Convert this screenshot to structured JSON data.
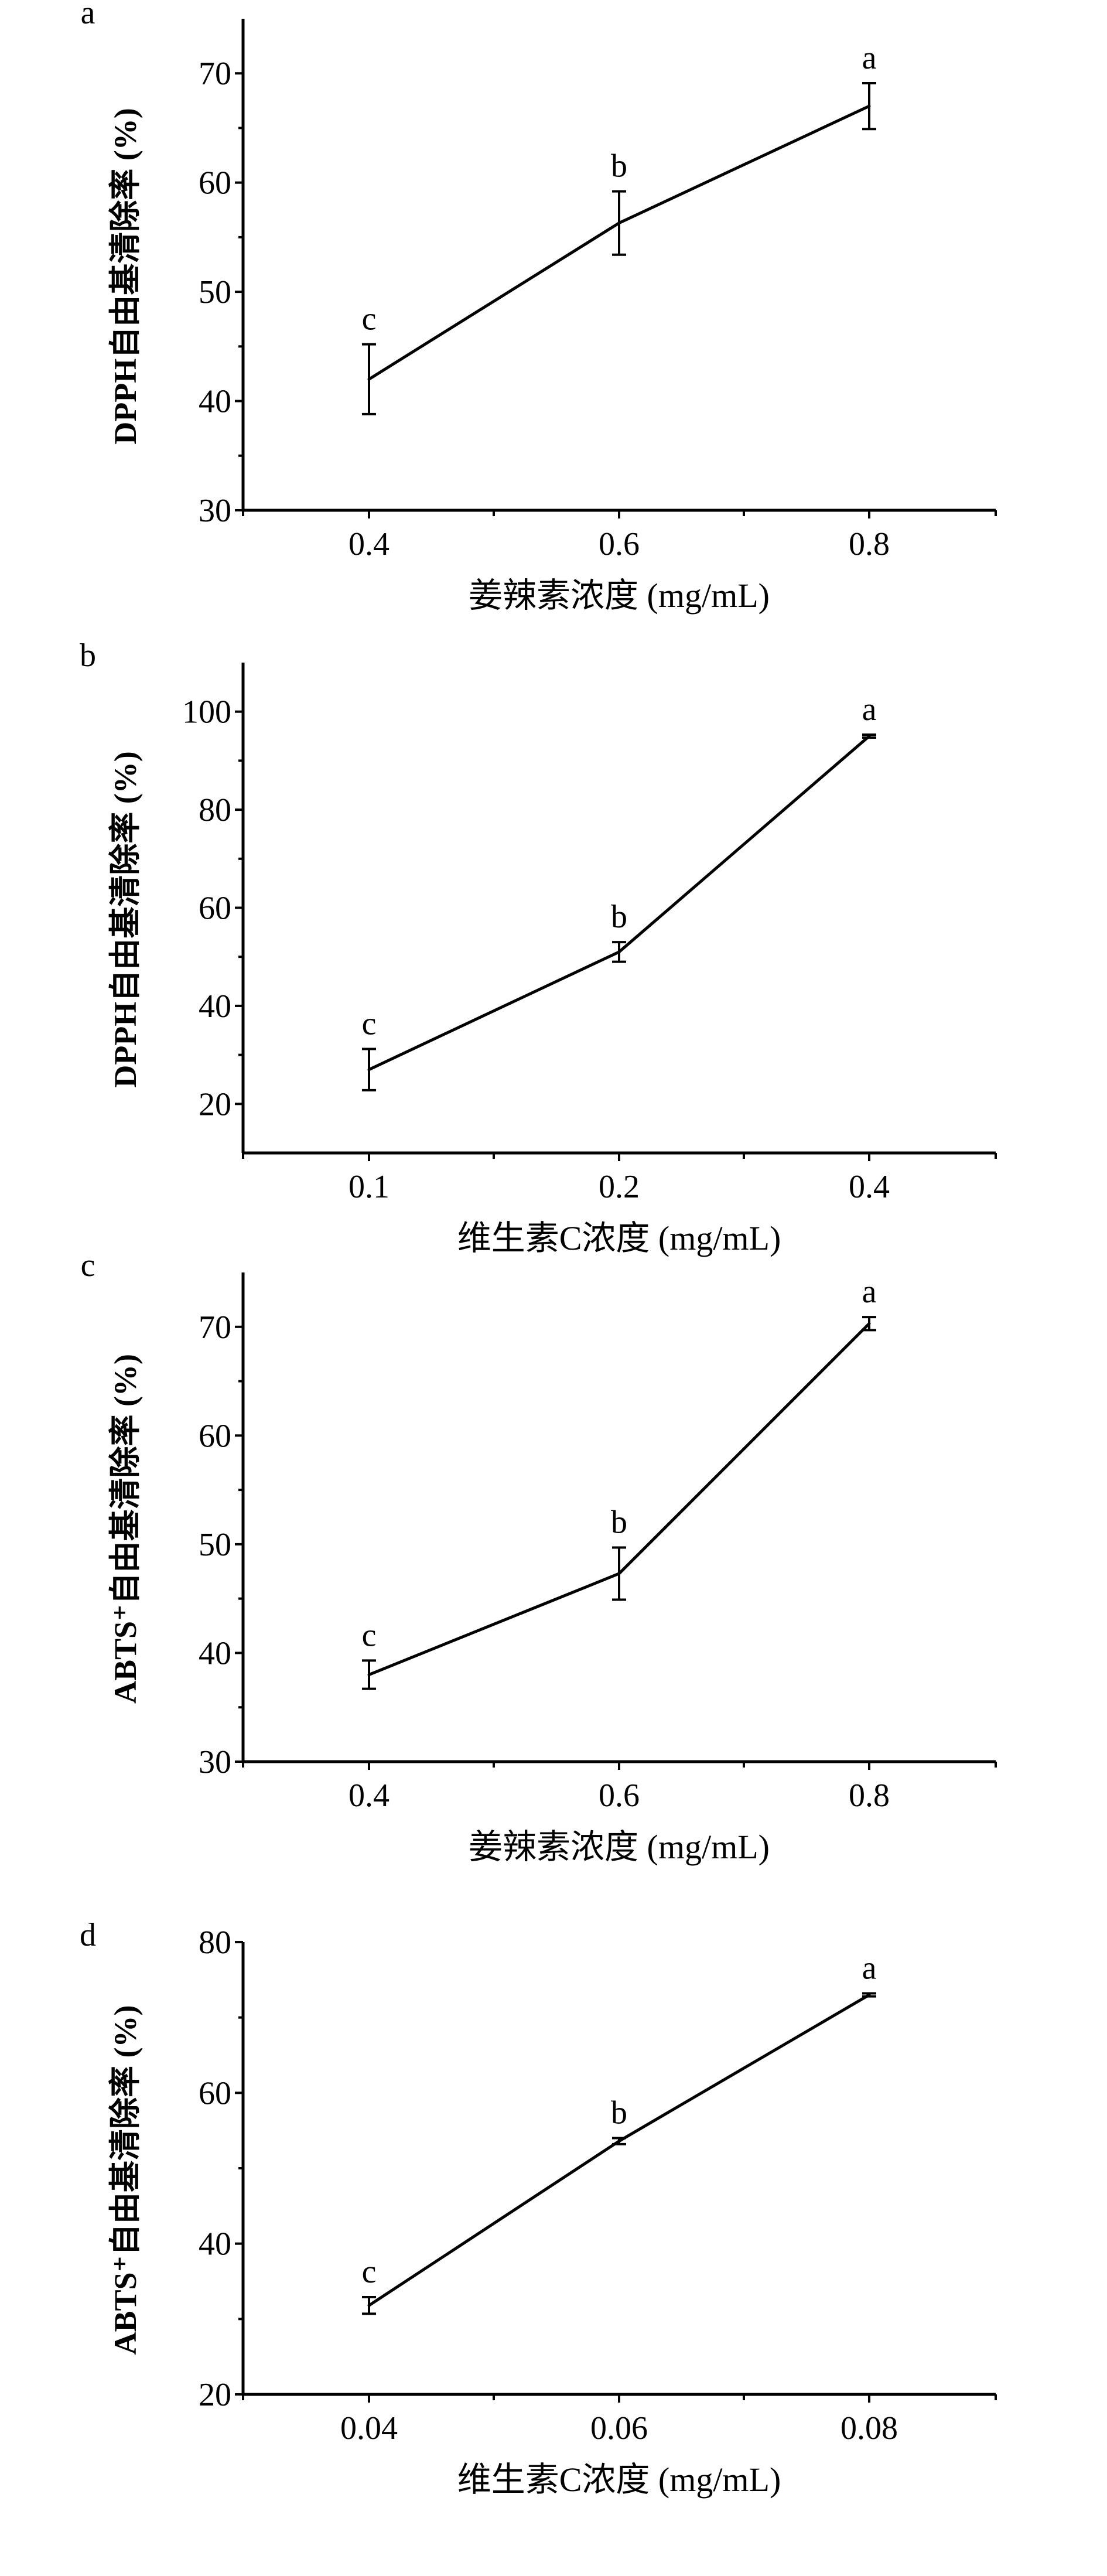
{
  "chart_data": [
    {
      "type": "line",
      "panel_label": "a",
      "categories": [
        "0.4",
        "0.6",
        "0.8"
      ],
      "values": [
        42.0,
        56.3,
        67.0
      ],
      "errors": [
        3.2,
        2.9,
        2.1
      ],
      "significance": [
        "c",
        "b",
        "a"
      ],
      "xlabel": "姜辣素浓度 (mg/mL)",
      "ylabel": "DPPH自由基清除率 (%)",
      "ylim": [
        30,
        75
      ],
      "yticks": [
        30,
        40,
        50,
        60,
        70
      ],
      "ytick_labels": [
        "30",
        "40",
        "50",
        "60",
        "70"
      ],
      "grid": false
    },
    {
      "type": "line",
      "panel_label": "b",
      "categories": [
        "0.1",
        "0.2",
        "0.4"
      ],
      "values": [
        27.0,
        51.0,
        95.0
      ],
      "errors": [
        4.2,
        2.0,
        0.3
      ],
      "significance": [
        "c",
        "b",
        "a"
      ],
      "xlabel": "维生素C浓度 (mg/mL)",
      "ylabel": "DPPH自由基清除率 (%)",
      "ylim": [
        10,
        110
      ],
      "yticks": [
        20,
        40,
        60,
        80,
        100
      ],
      "ytick_labels": [
        "20",
        "40",
        "60",
        "80",
        "100"
      ],
      "grid": false
    },
    {
      "type": "line",
      "panel_label": "c",
      "categories": [
        "0.4",
        "0.6",
        "0.8"
      ],
      "values": [
        38.0,
        47.3,
        70.3
      ],
      "errors": [
        1.3,
        2.4,
        0.6
      ],
      "significance": [
        "c",
        "b",
        "a"
      ],
      "xlabel": "姜辣素浓度 (mg/mL)",
      "ylabel": "ABTS⁺自由基清除率 (%)",
      "ylim": [
        30,
        75
      ],
      "yticks": [
        30,
        40,
        50,
        60,
        70
      ],
      "ytick_labels": [
        "30",
        "40",
        "50",
        "60",
        "70"
      ],
      "grid": false
    },
    {
      "type": "line",
      "panel_label": "d",
      "categories": [
        "0.04",
        "0.06",
        "0.08"
      ],
      "values": [
        31.8,
        53.6,
        73.0
      ],
      "errors": [
        1.1,
        0.4,
        0.2
      ],
      "significance": [
        "c",
        "b",
        "a"
      ],
      "xlabel": "维生素C浓度 (mg/mL)",
      "ylabel": "ABTS⁺自由基清除率 (%)",
      "ylim": [
        20,
        80
      ],
      "yticks": [
        20,
        40,
        60,
        80
      ],
      "ytick_labels": [
        "20",
        "40",
        "60",
        "80"
      ],
      "grid": false
    }
  ]
}
